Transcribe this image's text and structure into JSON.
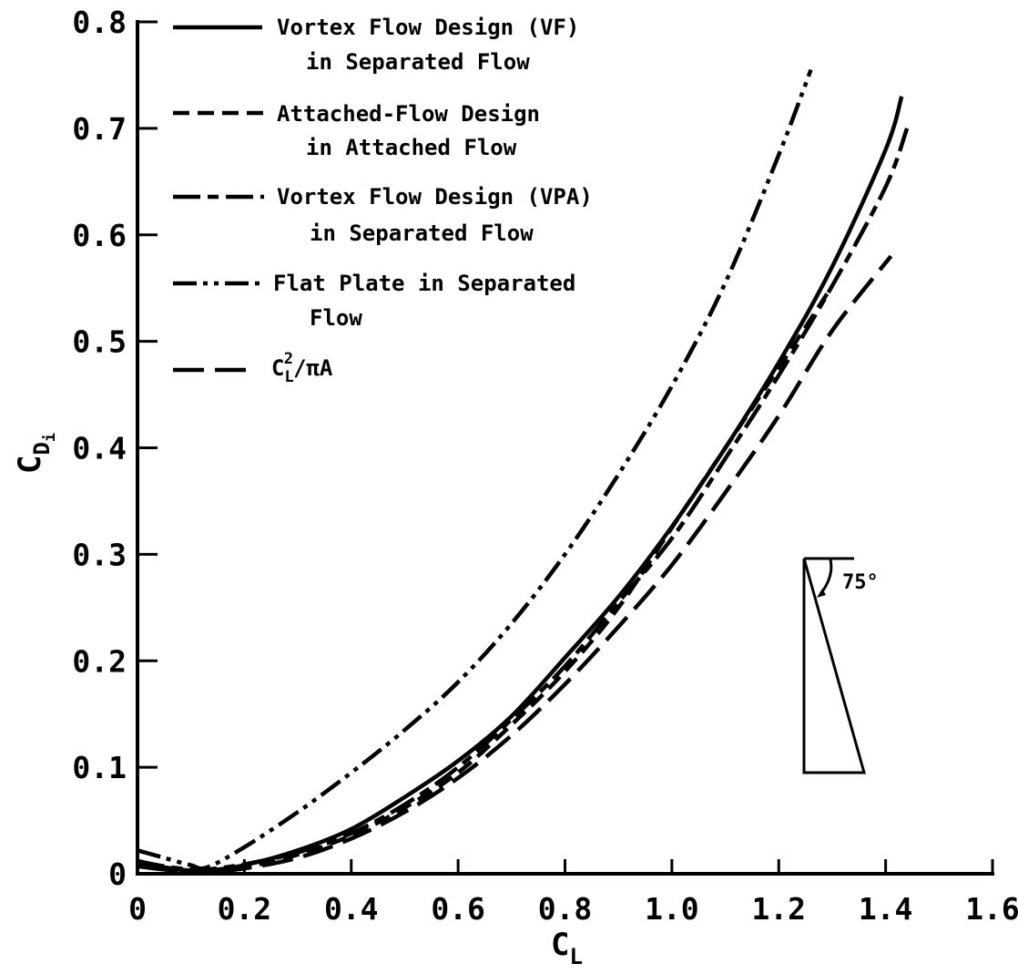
{
  "chart_data": {
    "type": "line",
    "xlabel_main": "C",
    "xlabel_sub": "L",
    "ylabel_main": "C",
    "ylabel_sub": "D",
    "ylabel_subsub": "i",
    "xlim": [
      0,
      1.6
    ],
    "ylim": [
      0,
      0.8
    ],
    "x_ticks": [
      0,
      0.2,
      0.4,
      0.6,
      0.8,
      1.0,
      1.2,
      1.4,
      1.6
    ],
    "x_tick_labels": [
      "0",
      "0.2",
      "0.4",
      "0.6",
      "0.8",
      "1.0",
      "1.2",
      "1.4",
      "1.6"
    ],
    "y_ticks": [
      0,
      0.1,
      0.2,
      0.3,
      0.4,
      0.5,
      0.6,
      0.7,
      0.8
    ],
    "y_tick_labels": [
      "0",
      "0.1",
      "0.2",
      "0.3",
      "0.4",
      "0.5",
      "0.6",
      "0.7",
      "0.8"
    ],
    "grid": false,
    "legend_position": "top-left",
    "series": [
      {
        "name": "Vortex Flow Design (VF) in Separated Flow",
        "legend_lines": [
          "Vortex Flow Design (VF)",
          "in Separated Flow"
        ],
        "style": "solid",
        "x": [
          0.0,
          0.05,
          0.1,
          0.13,
          0.2,
          0.3,
          0.4,
          0.5,
          0.6,
          0.7,
          0.8,
          0.9,
          1.0,
          1.1,
          1.2,
          1.3,
          1.4,
          1.43
        ],
        "y": [
          0.01,
          0.006,
          0.003,
          0.003,
          0.008,
          0.022,
          0.042,
          0.072,
          0.106,
          0.148,
          0.203,
          0.26,
          0.326,
          0.4,
          0.48,
          0.57,
          0.68,
          0.73
        ]
      },
      {
        "name": "Attached-Flow Design in Attached Flow",
        "legend_lines": [
          "Attached-Flow Design",
          "in Attached Flow"
        ],
        "style": "dashed",
        "x": [
          0.0,
          0.05,
          0.1,
          0.13,
          0.2,
          0.3,
          0.4,
          0.5,
          0.6,
          0.7,
          0.8,
          0.9,
          1.0,
          1.1,
          1.2,
          1.3
        ],
        "y": [
          0.008,
          0.004,
          0.002,
          0.002,
          0.006,
          0.018,
          0.036,
          0.062,
          0.095,
          0.14,
          0.19,
          0.25,
          0.325,
          0.4,
          0.475,
          0.552
        ]
      },
      {
        "name": "Vortex Flow Design (VPA) in Separated Flow",
        "legend_lines": [
          "Vortex Flow Design (VPA)",
          "in Separated Flow"
        ],
        "style": "long-dash-short-dash",
        "x": [
          0.0,
          0.05,
          0.1,
          0.13,
          0.2,
          0.3,
          0.4,
          0.5,
          0.6,
          0.7,
          0.8,
          0.9,
          1.0,
          1.1,
          1.2,
          1.3,
          1.4,
          1.44
        ],
        "y": [
          0.012,
          0.007,
          0.004,
          0.004,
          0.009,
          0.02,
          0.038,
          0.065,
          0.1,
          0.145,
          0.195,
          0.255,
          0.315,
          0.39,
          0.468,
          0.552,
          0.645,
          0.7
        ]
      },
      {
        "name": "Flat Plate in Separated Flow",
        "legend_lines": [
          "Flat Plate in Separated",
          "Flow"
        ],
        "style": "dash-dot-dot",
        "x": [
          0.0,
          0.05,
          0.1,
          0.13,
          0.2,
          0.3,
          0.4,
          0.5,
          0.6,
          0.7,
          0.8,
          0.9,
          1.0,
          1.1,
          1.2,
          1.26
        ],
        "y": [
          0.022,
          0.015,
          0.008,
          0.006,
          0.025,
          0.058,
          0.095,
          0.135,
          0.18,
          0.235,
          0.3,
          0.375,
          0.458,
          0.555,
          0.675,
          0.755
        ]
      },
      {
        "name": "C_L^2/πA",
        "legend_main": "C",
        "legend_sub": "L",
        "legend_sup": "2",
        "legend_tail": "/πA",
        "style": "long-dash",
        "x": [
          0.0,
          0.05,
          0.1,
          0.13,
          0.2,
          0.3,
          0.4,
          0.5,
          0.6,
          0.7,
          0.8,
          0.9,
          1.0,
          1.1,
          1.2,
          1.3,
          1.41
        ],
        "y": [
          0.007,
          0.004,
          0.002,
          0.002,
          0.005,
          0.015,
          0.033,
          0.058,
          0.09,
          0.13,
          0.178,
          0.232,
          0.29,
          0.358,
          0.43,
          0.51,
          0.58
        ]
      }
    ],
    "annotation": {
      "angle_label": "75°",
      "shape": "delta-wing planform"
    }
  }
}
